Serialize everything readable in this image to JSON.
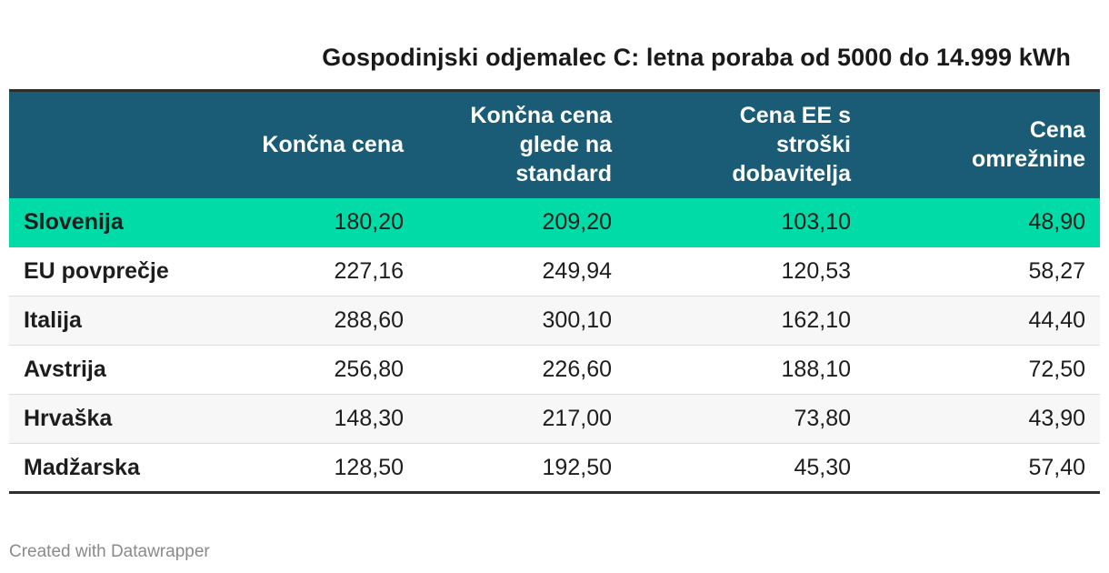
{
  "chart_data": {
    "type": "table",
    "title": "Gospodinjski odjemalec C: letna poraba od 5000 do 14.999 kWh",
    "columns": [
      "",
      "Končna cena",
      "Končna cena glede na standard",
      "Cena EE s stroški dobavitelja",
      "Cena omrežnine"
    ],
    "column_lines": [
      [],
      [
        "Končna cena"
      ],
      [
        "Končna cena",
        "glede na",
        "standard"
      ],
      [
        "Cena EE s",
        "stroški",
        "dobavitelja"
      ],
      [
        "Cena",
        "omrežnine"
      ]
    ],
    "rows": [
      {
        "country": "Slovenija",
        "values": [
          "180,20",
          "209,20",
          "103,10",
          "48,90"
        ]
      },
      {
        "country": "EU povprečje",
        "values": [
          "227,16",
          "249,94",
          "120,53",
          "58,27"
        ]
      },
      {
        "country": "Italija",
        "values": [
          "288,60",
          "300,10",
          "162,10",
          "44,40"
        ]
      },
      {
        "country": "Avstrija",
        "values": [
          "256,80",
          "226,60",
          "188,10",
          "72,50"
        ]
      },
      {
        "country": "Hrvaška",
        "values": [
          "148,30",
          "217,00",
          "73,80",
          "43,90"
        ]
      },
      {
        "country": "Madžarska",
        "values": [
          "128,50",
          "192,50",
          "45,30",
          "57,40"
        ]
      }
    ],
    "highlight_row": "Slovenija",
    "colors": {
      "header_background": "#1a5c75",
      "highlight_background": "#00dba8",
      "stripe_background": "#f7f7f7"
    }
  },
  "footer": {
    "credit": "Created with Datawrapper"
  }
}
